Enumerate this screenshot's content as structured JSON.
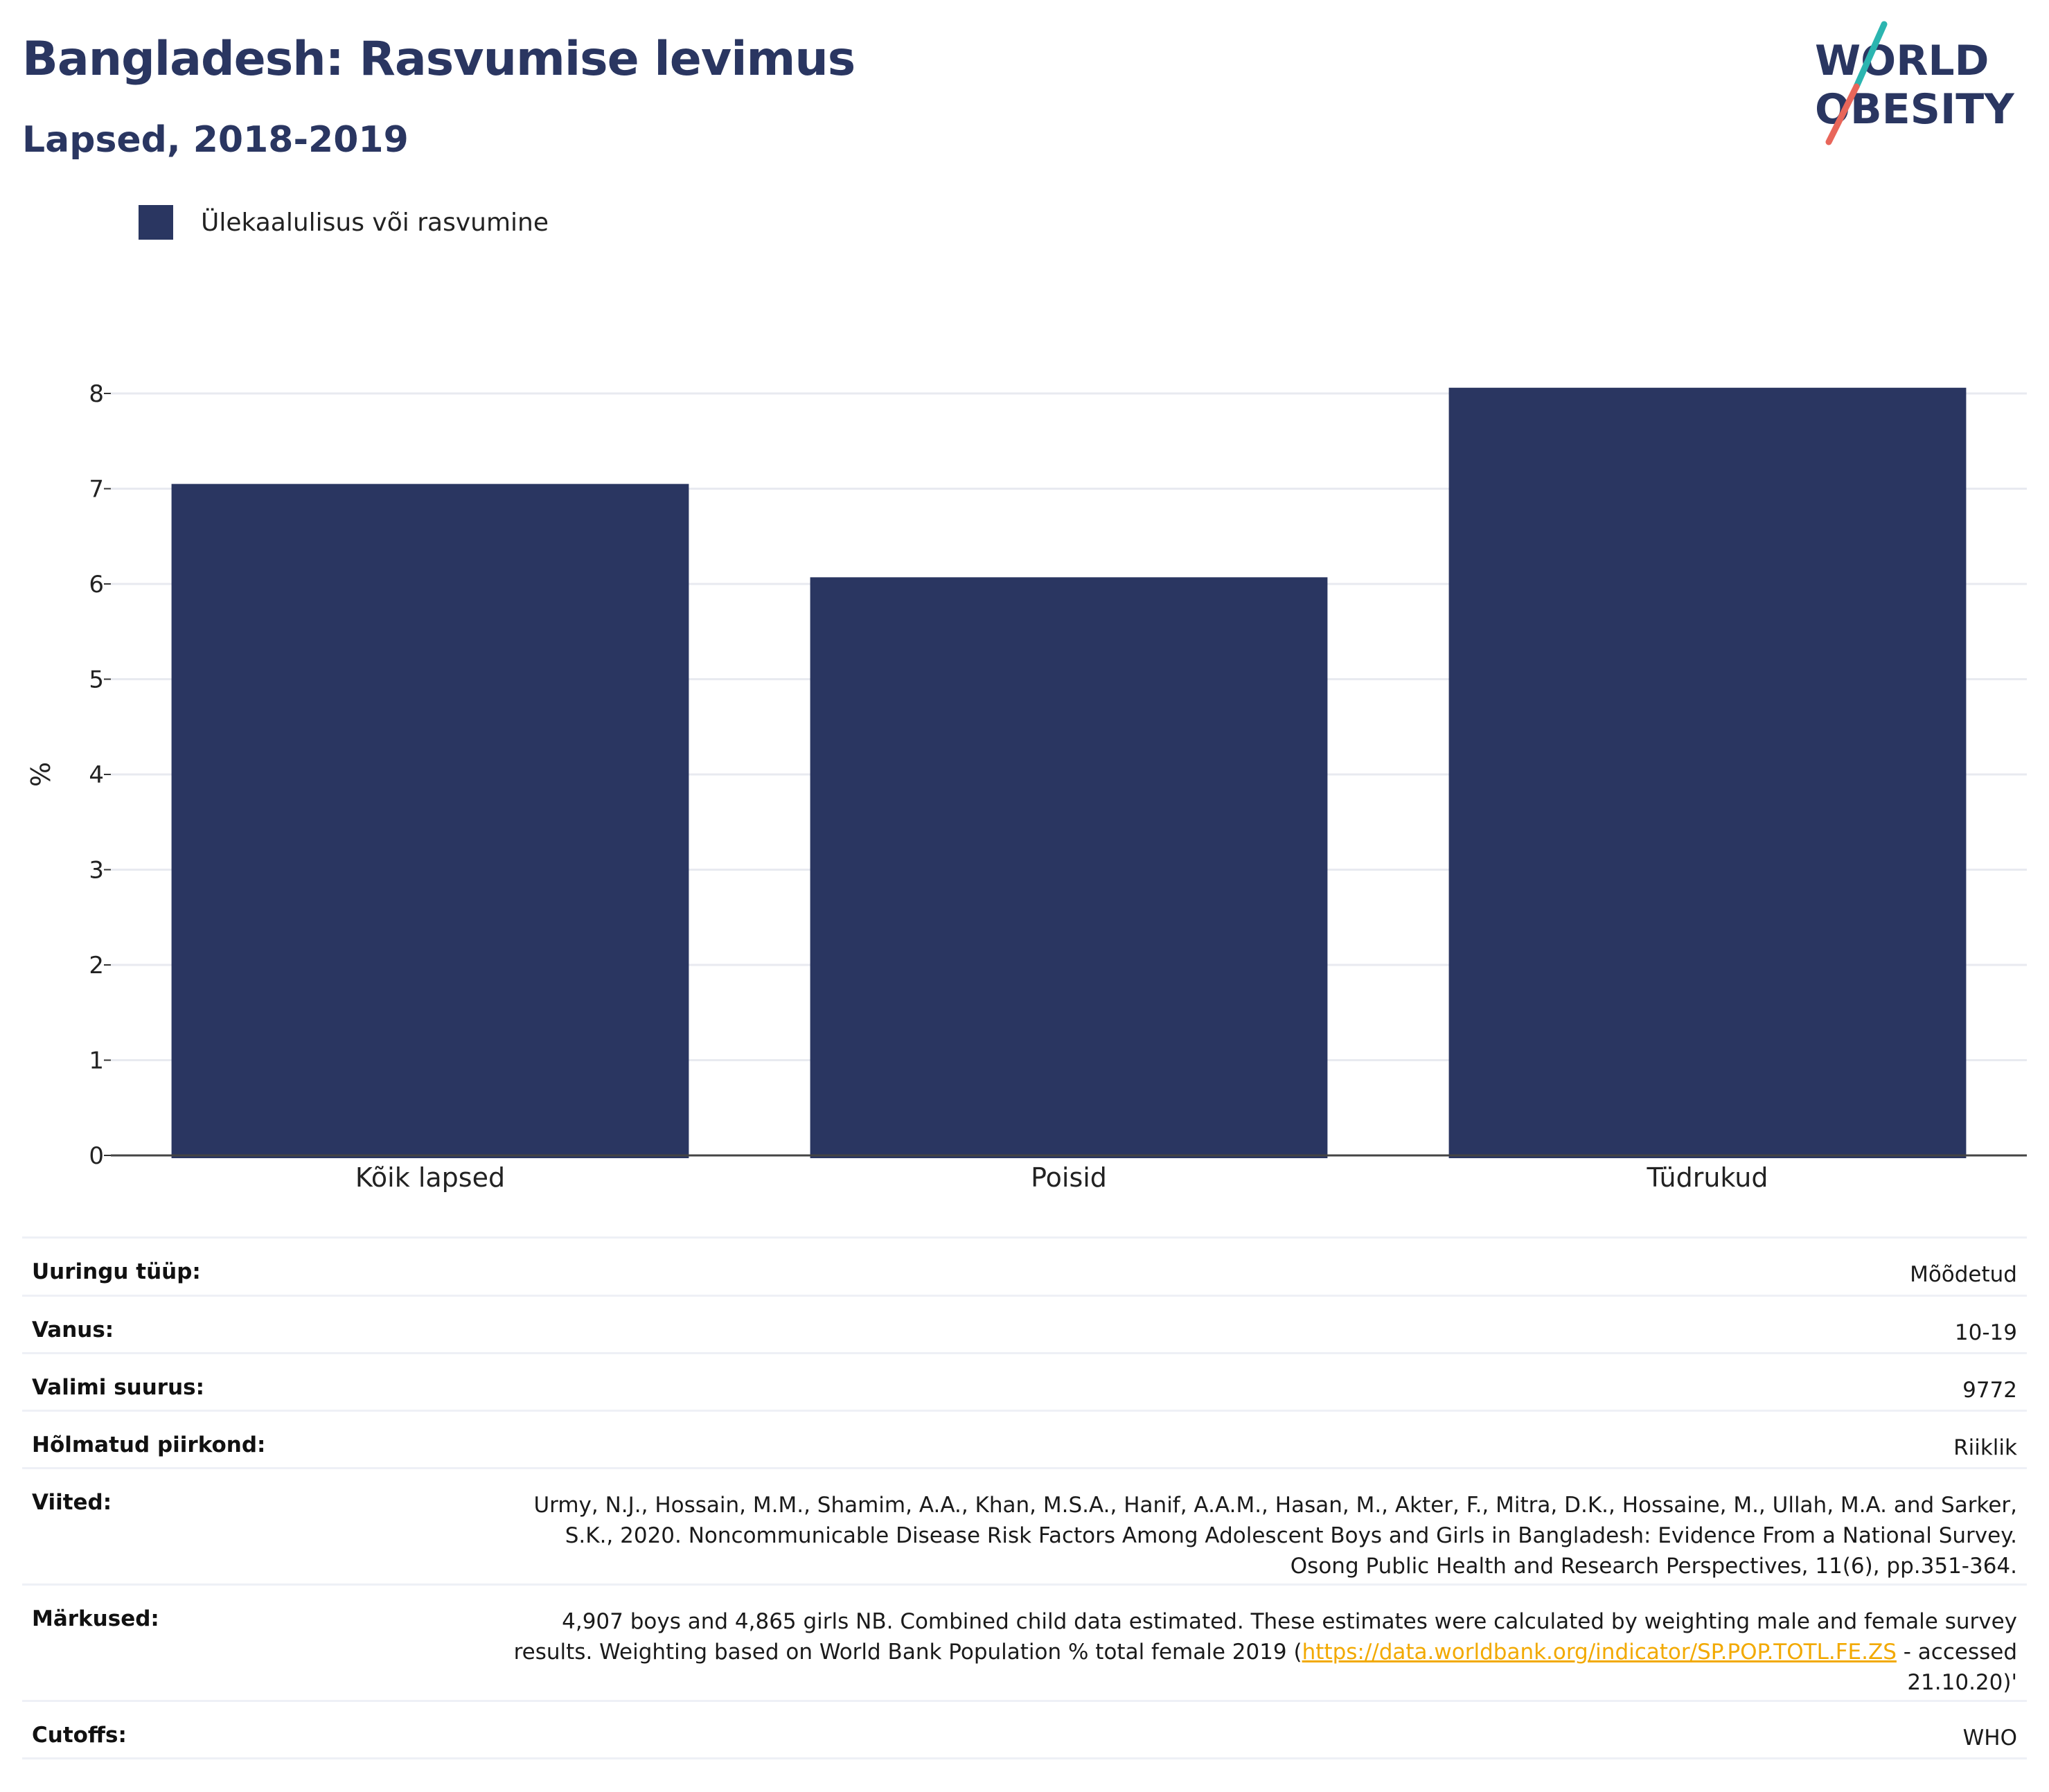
{
  "header": {
    "title": "Bangladesh: Rasvumise levimus",
    "subtitle": "Lapsed, 2018-2019"
  },
  "logo": {
    "line1": "WORLD",
    "line2": "OBESITY",
    "colors": {
      "text": "#2a3661",
      "slash_top": "#2bb5b0",
      "slash_bottom": "#e8665a"
    }
  },
  "legend": {
    "items": [
      {
        "label": "Ülekaalulisus või rasvumine",
        "color": "#2a3661"
      }
    ]
  },
  "chart_data": {
    "type": "bar",
    "categories": [
      "Kõik lapsed",
      "Poisid",
      "Tüdrukud"
    ],
    "series": [
      {
        "name": "Ülekaalulisus või rasvumine",
        "values": [
          7.05,
          6.07,
          8.06
        ],
        "color": "#2a3661"
      }
    ],
    "ylabel": "%",
    "xlabel": "",
    "ylim": [
      0,
      8.3
    ],
    "yticks": [
      0,
      1,
      2,
      3,
      4,
      5,
      6,
      7,
      8
    ],
    "grid": true,
    "legend_position": "top-left"
  },
  "info": {
    "survey_type": {
      "label": "Uuringu tüüp:",
      "value": "Mõõdetud"
    },
    "age": {
      "label": "Vanus:",
      "value": "10-19"
    },
    "sample_size": {
      "label": "Valimi suurus:",
      "value": "9772"
    },
    "region": {
      "label": "Hõlmatud piirkond:",
      "value": "Riiklik"
    },
    "references": {
      "label": "Viited:",
      "value": "Urmy, N.J., Hossain, M.M., Shamim, A.A., Khan, M.S.A., Hanif, A.A.M., Hasan, M., Akter, F., Mitra, D.K., Hossaine, M., Ullah, M.A. and Sarker, S.K., 2020. Noncommunicable Disease Risk Factors Among Adolescent Boys and Girls in Bangladesh: Evidence From a National Survey. Osong Public Health and Research Perspectives, 11(6), pp.351-364."
    },
    "notes": {
      "label": "Märkused:",
      "text_before": "4,907 boys and 4,865 girls NB. Combined child data estimated. These estimates were calculated by weighting male and female survey results. Weighting based on World Bank Population % total female 2019 (",
      "link": "https://data.worldbank.org/indicator/SP.POP.TOTL.FE.ZS",
      "text_after": " - accessed 21.10.20)'"
    },
    "cutoffs": {
      "label": "Cutoffs:",
      "value": "WHO"
    }
  }
}
